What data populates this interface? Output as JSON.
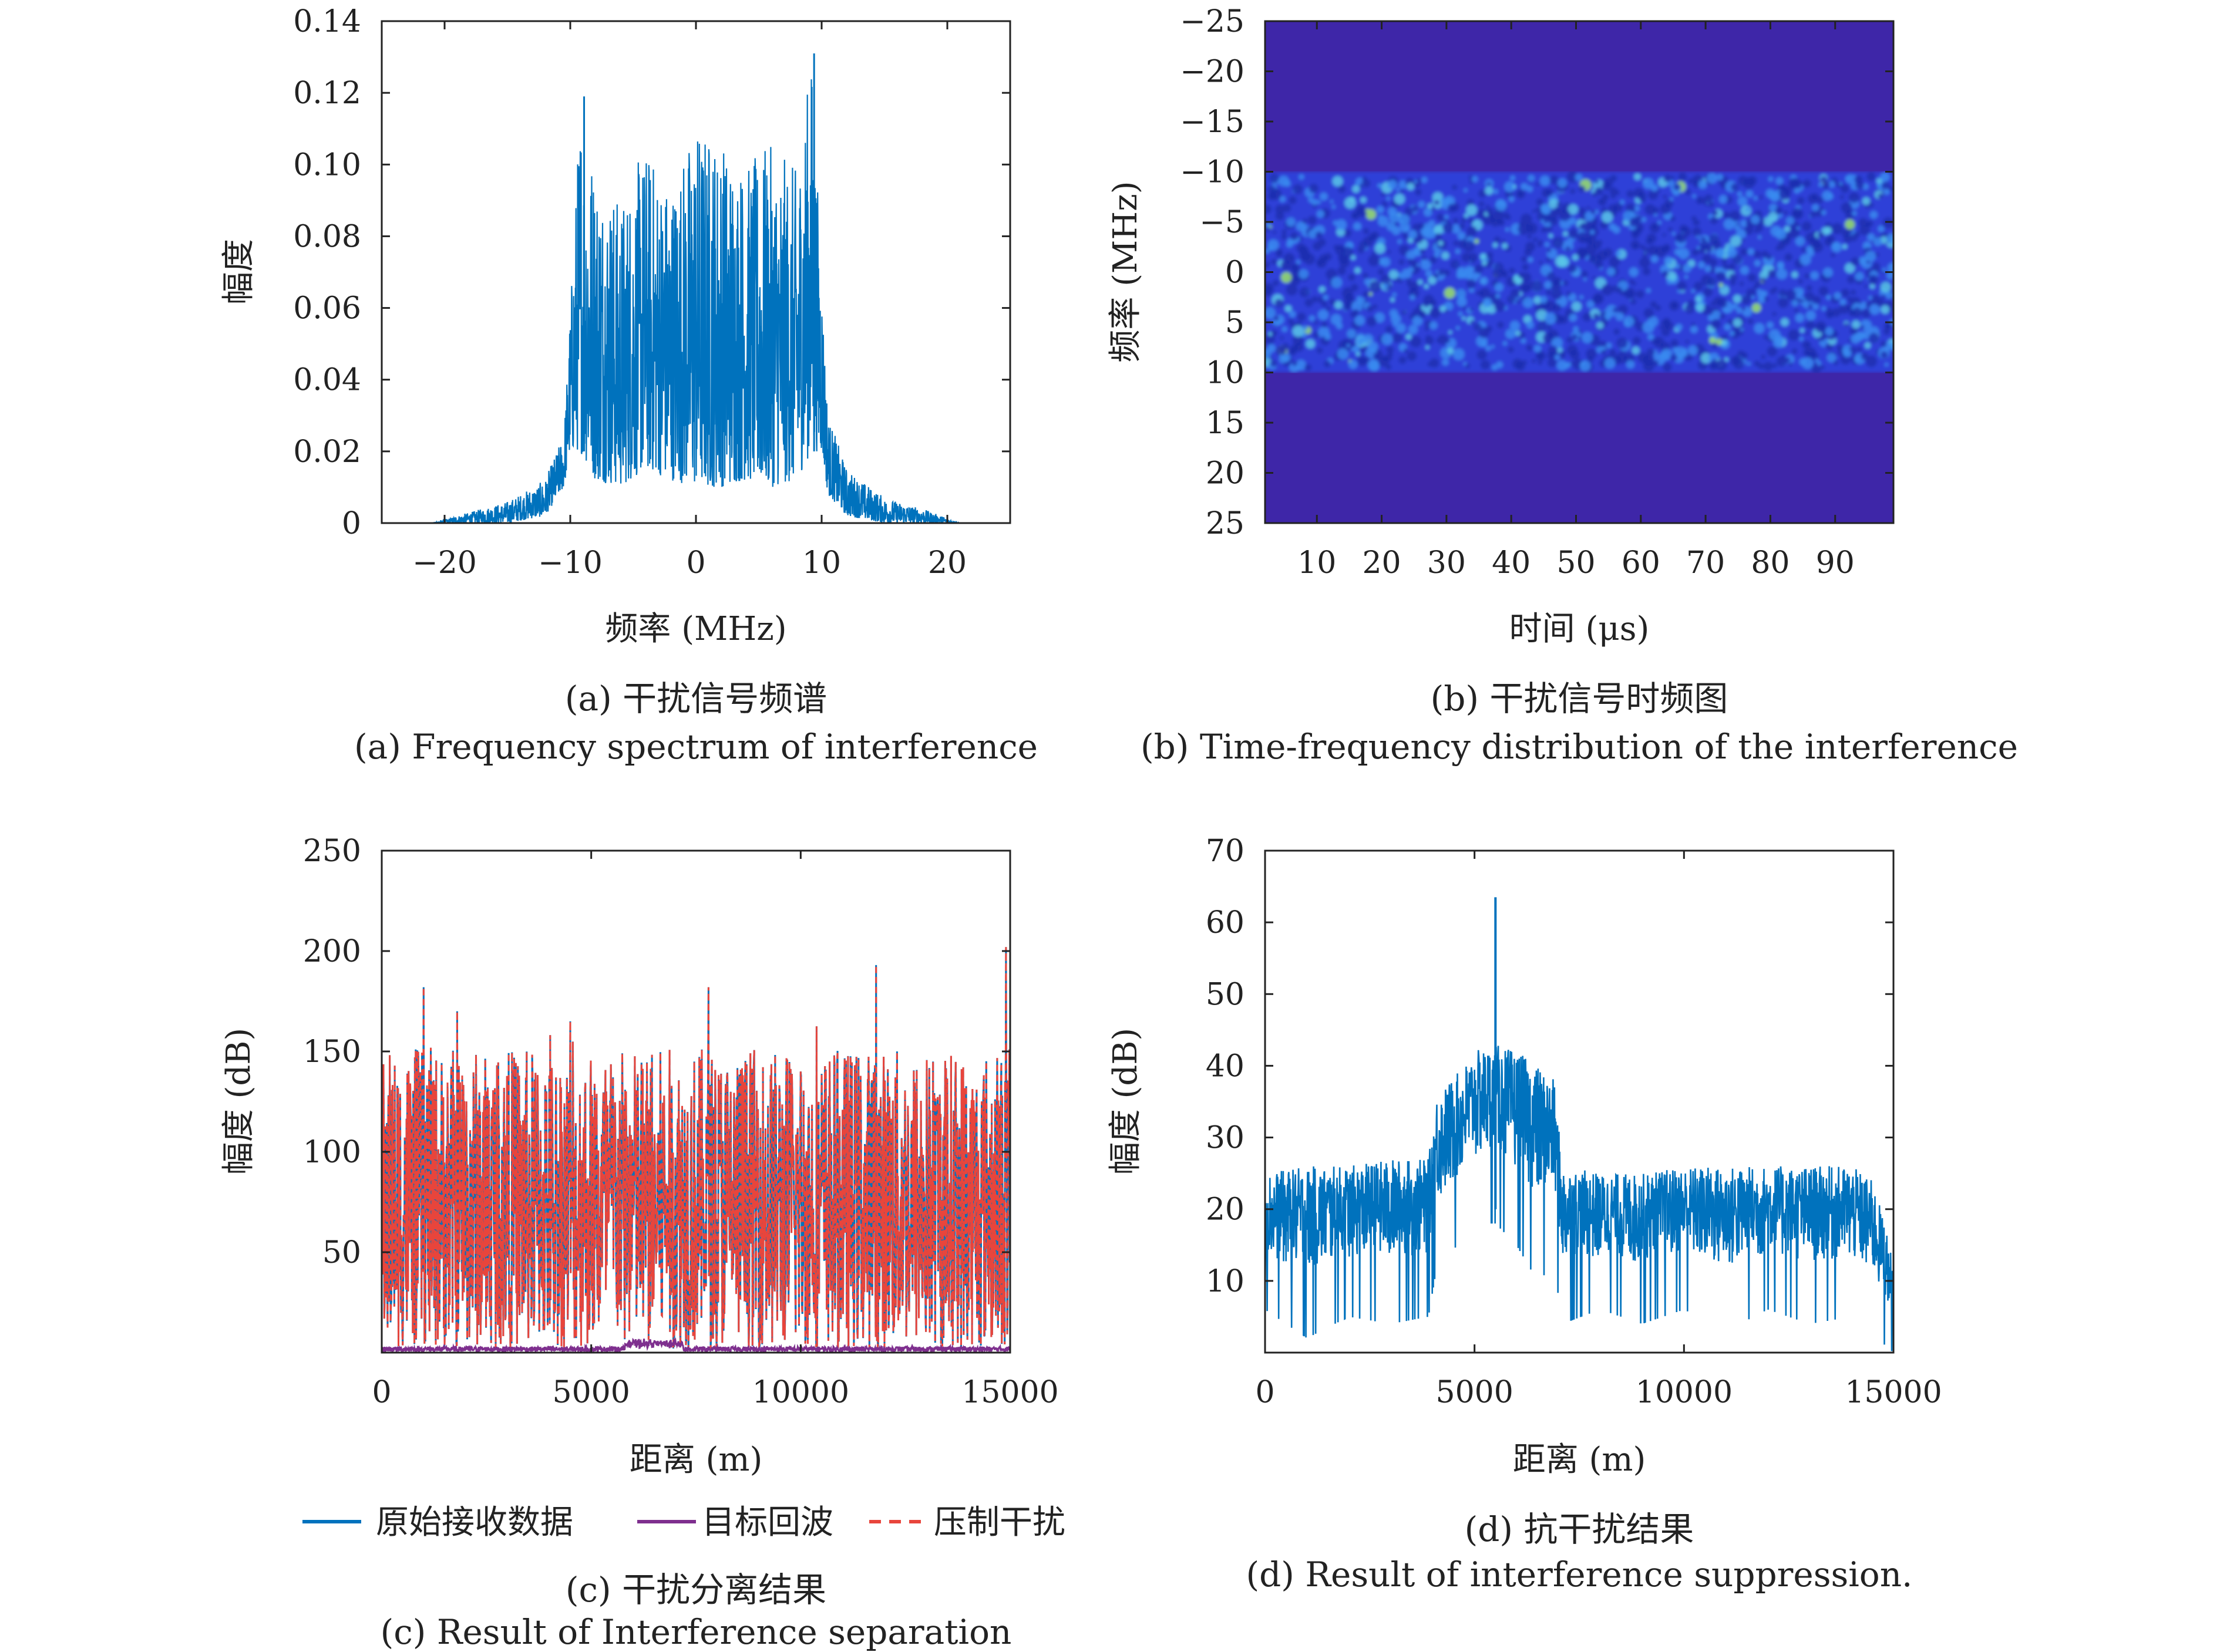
{
  "chart_data": [
    {
      "id": "a",
      "type": "line",
      "xlabel": "频率 (MHz)",
      "ylabel": "幅度",
      "xlim": [
        -25,
        25
      ],
      "ylim": [
        0,
        0.14
      ],
      "xticks": [
        -20,
        -10,
        0,
        10,
        20
      ],
      "xtick_labels": [
        "−20",
        "−10",
        "0",
        "10",
        "20"
      ],
      "yticks": [
        0,
        0.02,
        0.04,
        0.06,
        0.08,
        0.1,
        0.12,
        0.14
      ],
      "ytick_labels": [
        "0",
        "0.02",
        "0.04",
        "0.06",
        "0.08",
        "0.10",
        "0.12",
        "0.14"
      ],
      "color": "#0072BD",
      "series": [
        {
          "values_description": "",
          "x": [
            -21,
            -18,
            -15,
            -12,
            -10.5,
            -10,
            -9.2,
            -8,
            -6,
            -4,
            -2,
            0,
            2,
            4,
            6,
            8,
            9.2,
            10,
            10.5,
            12,
            15,
            18,
            21
          ],
          "envelope_max": [
            0,
            0.003,
            0.006,
            0.012,
            0.025,
            0.06,
            0.119,
            0.1,
            0.09,
            0.105,
            0.095,
            0.112,
            0.108,
            0.1,
            0.105,
            0.098,
            0.131,
            0.07,
            0.03,
            0.015,
            0.007,
            0.004,
            0
          ],
          "envelope_min": [
            0,
            0,
            0,
            0.002,
            0.01,
            0.02,
            0.02,
            0.012,
            0.01,
            0.015,
            0.012,
            0.01,
            0.01,
            0.012,
            0.01,
            0.012,
            0.02,
            0.02,
            0.008,
            0.002,
            0,
            0,
            0
          ]
        }
      ],
      "caption_zh": "(a) 干扰信号频谱",
      "caption_en": "(a) Frequency spectrum of interference"
    },
    {
      "id": "b",
      "type": "heatmap",
      "xlabel": "时间 (μs)",
      "ylabel": "频率 (MHz)",
      "xlim": [
        2,
        99
      ],
      "ylim": [
        -25,
        25
      ],
      "xticks": [
        10,
        20,
        30,
        40,
        50,
        60,
        70,
        80,
        90
      ],
      "xtick_labels": [
        "10",
        "20",
        "30",
        "40",
        "50",
        "60",
        "70",
        "80",
        "90"
      ],
      "yticks": [
        -25,
        -20,
        -15,
        -10,
        -5,
        0,
        5,
        10,
        15,
        20,
        25
      ],
      "ytick_labels": [
        "−25",
        "−20",
        "−15",
        "−10",
        "−5",
        "0",
        "5",
        "10",
        "15",
        "20",
        "25"
      ],
      "y_inverted": true,
      "background_color": "#3E26A8",
      "band": [
        -10,
        10
      ],
      "band_colors": [
        "#2D3FD8",
        "#3A8BF0",
        "#5BC7E8",
        "#9BE36A"
      ],
      "caption_zh": "(b) 干扰信号时频图",
      "caption_en": "(b) Time-frequency distribution of the interference"
    },
    {
      "id": "c",
      "type": "line",
      "xlabel": "距离 (m)",
      "ylabel": "幅度 (dB)",
      "xlim": [
        0,
        15000
      ],
      "ylim": [
        0,
        250
      ],
      "xticks": [
        0,
        5000,
        10000,
        15000
      ],
      "xtick_labels": [
        "0",
        "5000",
        "10000",
        "15000"
      ],
      "yticks": [
        50,
        100,
        150,
        200,
        250
      ],
      "ytick_labels": [
        "50",
        "100",
        "150",
        "200",
        "250"
      ],
      "series": [
        {
          "name": "原始接收数据",
          "color": "#0072BD",
          "style": "solid",
          "range": [
            0,
            180
          ],
          "peaks": [
            [
              1000,
              182
            ],
            [
              1800,
              170
            ],
            [
              4500,
              165
            ],
            [
              7800,
              182
            ],
            [
              11800,
              193
            ],
            [
              14900,
              202
            ]
          ]
        },
        {
          "name": "目标回波",
          "color": "#7E2F8E",
          "style": "solid",
          "range": [
            0,
            4
          ],
          "peaks": [
            [
              6500,
              6
            ]
          ]
        },
        {
          "name": "压制干扰",
          "color": "#E8453C",
          "style": "dashed",
          "range": [
            0,
            180
          ],
          "peaks": [
            [
              1000,
              182
            ],
            [
              1800,
              170
            ],
            [
              4500,
              165
            ],
            [
              7800,
              182
            ],
            [
              11800,
              193
            ],
            [
              14900,
              202
            ]
          ]
        }
      ],
      "legend_position": "bottom",
      "caption_zh": "(c) 干扰分离结果",
      "caption_en": "(c) Result of Interference separation"
    },
    {
      "id": "d",
      "type": "line",
      "xlabel": "距离 (m)",
      "ylabel": "幅度 (dB)",
      "xlim": [
        0,
        15000
      ],
      "ylim": [
        0,
        70
      ],
      "xticks": [
        0,
        5000,
        10000,
        15000
      ],
      "xtick_labels": [
        "0",
        "5000",
        "10000",
        "15000"
      ],
      "yticks": [
        10,
        20,
        30,
        40,
        50,
        60,
        70
      ],
      "ytick_labels": [
        "10",
        "20",
        "30",
        "40",
        "50",
        "60",
        "70"
      ],
      "color": "#0072BD",
      "series": [
        {
          "x": [
            0,
            1000,
            2000,
            3000,
            3900,
            4100,
            4600,
            5000,
            5500,
            6000,
            6500,
            6900,
            7100,
            8000,
            9000,
            10000,
            11000,
            12000,
            13000,
            14000,
            14500,
            14800,
            15000
          ],
          "envelope_max": [
            25,
            26,
            26,
            27,
            27,
            36,
            39,
            42,
            43,
            42,
            40,
            38,
            26,
            25,
            25,
            26,
            26,
            26,
            26,
            26,
            24,
            18,
            12
          ],
          "envelope_min": [
            6,
            2,
            5,
            4,
            5,
            12,
            15,
            18,
            18,
            15,
            10,
            12,
            4,
            6,
            4,
            6,
            3,
            6,
            4,
            5,
            3,
            1,
            0
          ],
          "spike": [
            5500,
            63.5
          ]
        }
      ],
      "caption_zh": "(d) 抗干扰结果",
      "caption_en": "(d) Result of interference suppression."
    }
  ]
}
